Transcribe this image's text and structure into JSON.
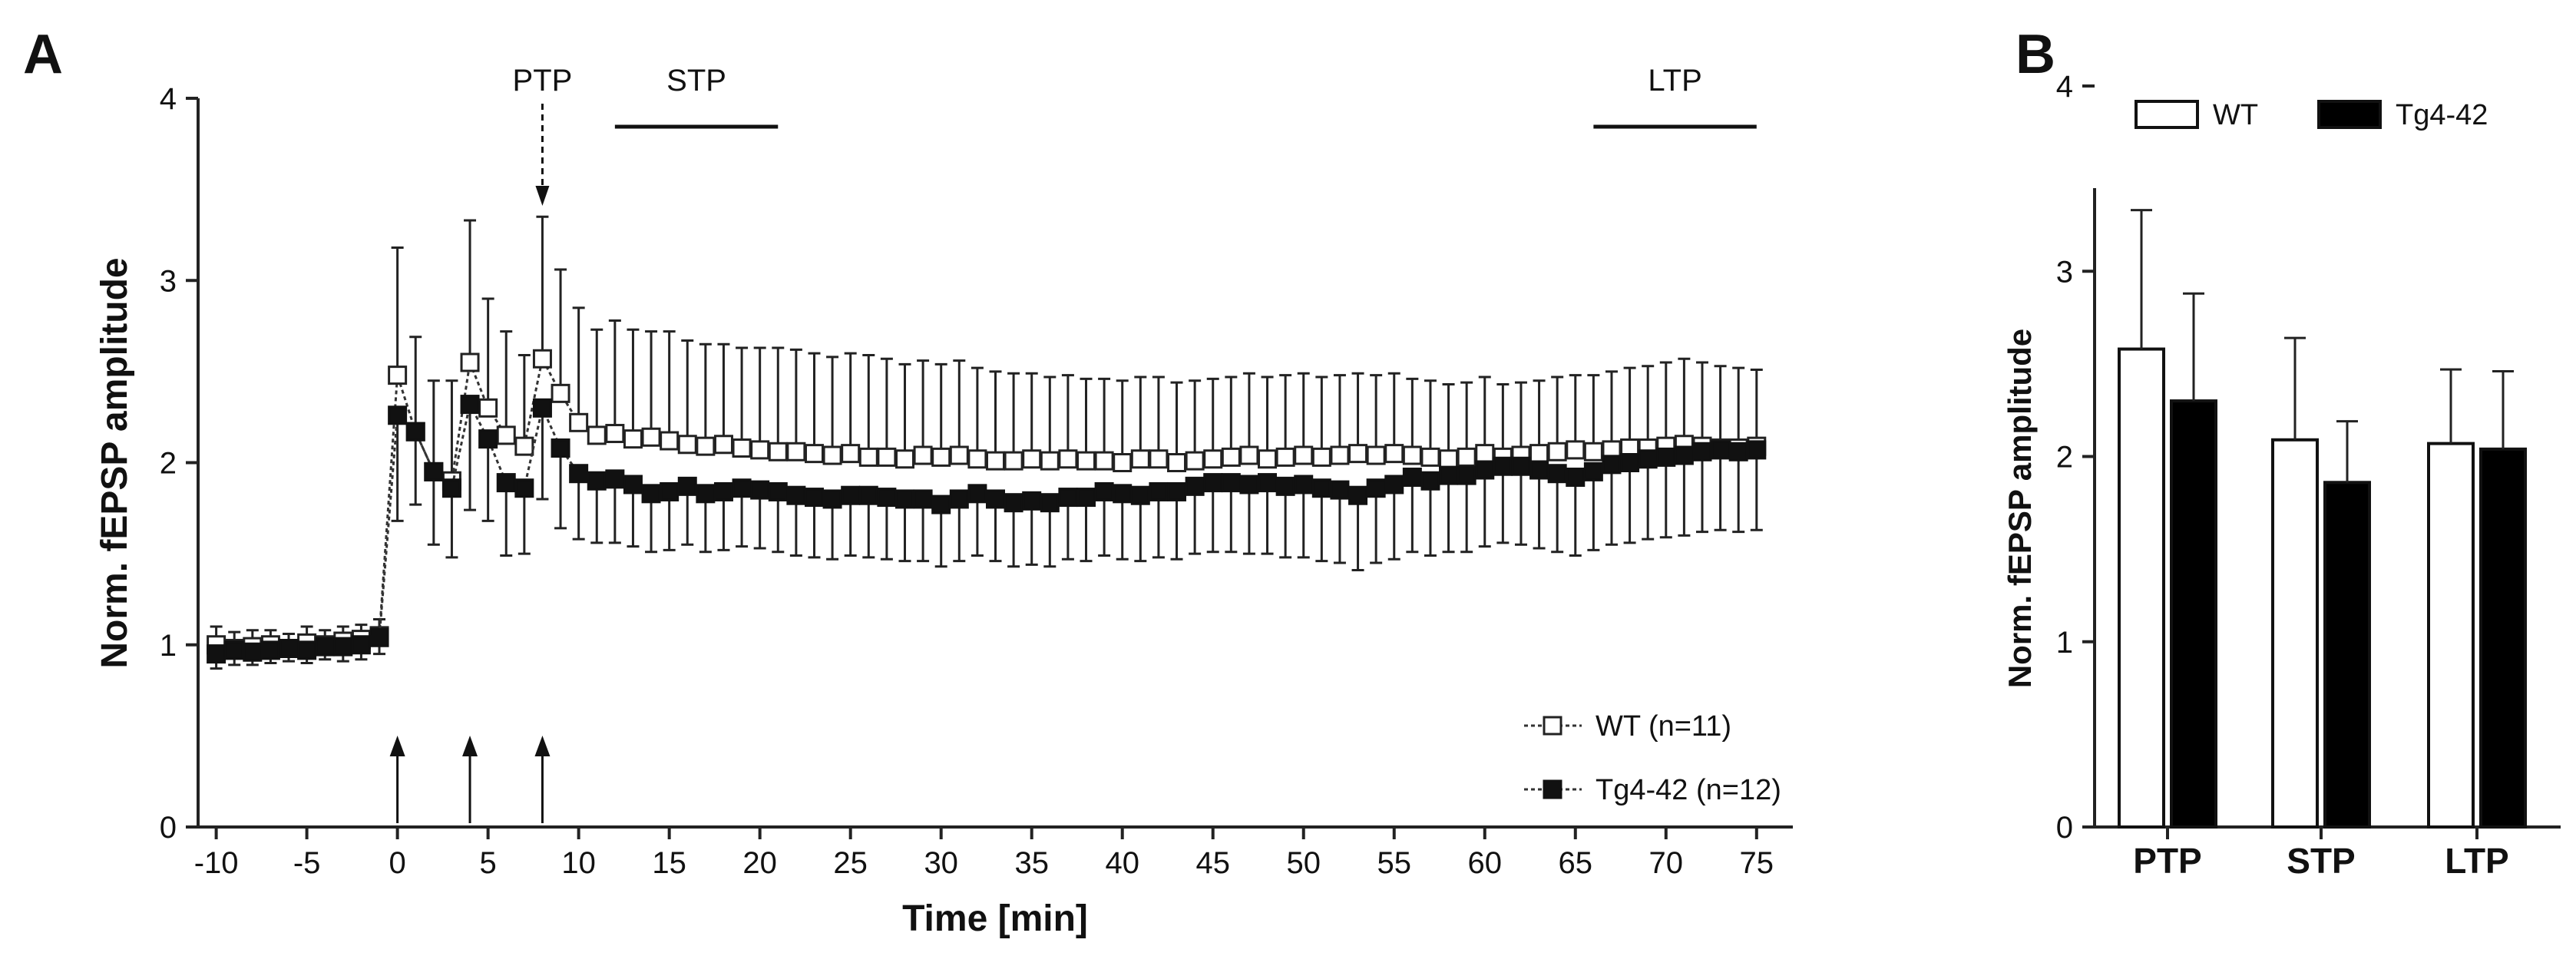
{
  "panel_a": {
    "label": "A",
    "annotations": {
      "ptp": "PTP",
      "stp": "STP",
      "ltp": "LTP"
    },
    "chart_data": {
      "type": "line",
      "xlabel": "Time [min]",
      "ylabel": "Norm. fEPSP amplitude",
      "xlim": [
        -11,
        77
      ],
      "ylim": [
        0,
        4
      ],
      "xticks": [
        "-10",
        "-5",
        "0",
        "5",
        "10",
        "15",
        "20",
        "25",
        "30",
        "35",
        "40",
        "45",
        "50",
        "55",
        "60",
        "65",
        "70",
        "75"
      ],
      "yticks": [
        "0",
        "1",
        "2",
        "3",
        "4"
      ],
      "stimulus_arrows_at": [
        0,
        4,
        8
      ],
      "ptp_arrow_at": 8,
      "stp_bar_range": [
        12,
        21
      ],
      "ltp_bar_range": [
        66,
        75
      ],
      "series": [
        {
          "name": "WT (n=11)",
          "marker": "open-square",
          "x": [
            -10,
            -9,
            -8,
            -7,
            -6,
            -5,
            -4,
            -3,
            -2,
            -1,
            0,
            1,
            2,
            3,
            4,
            5,
            6,
            7,
            8,
            9,
            10,
            11,
            12,
            13,
            14,
            15,
            16,
            17,
            18,
            19,
            20,
            21,
            22,
            23,
            24,
            25,
            26,
            27,
            28,
            29,
            30,
            31,
            32,
            33,
            34,
            35,
            36,
            37,
            38,
            39,
            40,
            41,
            42,
            43,
            44,
            45,
            46,
            47,
            48,
            49,
            50,
            51,
            52,
            53,
            54,
            55,
            56,
            57,
            58,
            59,
            60,
            61,
            62,
            63,
            64,
            65,
            66,
            67,
            68,
            69,
            70,
            71,
            72,
            73,
            74,
            75
          ],
          "y": [
            1.0,
            0.98,
            0.99,
            1.0,
            0.98,
            1.01,
            1.0,
            1.02,
            1.03,
            1.05,
            2.48,
            2.17,
            1.95,
            1.9,
            2.55,
            2.3,
            2.15,
            2.09,
            2.57,
            2.38,
            2.22,
            2.15,
            2.16,
            2.13,
            2.14,
            2.12,
            2.1,
            2.09,
            2.1,
            2.08,
            2.07,
            2.06,
            2.06,
            2.05,
            2.04,
            2.05,
            2.03,
            2.03,
            2.02,
            2.04,
            2.03,
            2.04,
            2.02,
            2.01,
            2.01,
            2.02,
            2.01,
            2.02,
            2.01,
            2.01,
            2.0,
            2.02,
            2.02,
            2.0,
            2.01,
            2.02,
            2.03,
            2.04,
            2.02,
            2.03,
            2.04,
            2.03,
            2.04,
            2.05,
            2.04,
            2.05,
            2.04,
            2.03,
            2.02,
            2.03,
            2.05,
            2.03,
            2.04,
            2.05,
            2.06,
            2.07,
            2.06,
            2.07,
            2.08,
            2.08,
            2.09,
            2.1,
            2.09,
            2.08,
            2.08,
            2.09
          ],
          "err": [
            0.1,
            0.09,
            0.09,
            0.08,
            0.08,
            0.09,
            0.08,
            0.08,
            0.08,
            0.09,
            0.7,
            0.52,
            0.5,
            0.55,
            0.78,
            0.6,
            0.57,
            0.5,
            0.78,
            0.68,
            0.63,
            0.58,
            0.62,
            0.6,
            0.58,
            0.6,
            0.57,
            0.56,
            0.55,
            0.55,
            0.56,
            0.57,
            0.56,
            0.55,
            0.54,
            0.55,
            0.56,
            0.54,
            0.52,
            0.52,
            0.51,
            0.52,
            0.5,
            0.49,
            0.48,
            0.47,
            0.46,
            0.46,
            0.45,
            0.45,
            0.45,
            0.45,
            0.45,
            0.44,
            0.44,
            0.44,
            0.44,
            0.45,
            0.45,
            0.45,
            0.45,
            0.44,
            0.44,
            0.44,
            0.44,
            0.44,
            0.42,
            0.42,
            0.41,
            0.41,
            0.42,
            0.4,
            0.4,
            0.4,
            0.41,
            0.41,
            0.42,
            0.43,
            0.44,
            0.45,
            0.46,
            0.47,
            0.46,
            0.45,
            0.44,
            0.42
          ]
        },
        {
          "name": "Tg4-42 (n=12)",
          "marker": "filled-square",
          "x": [
            -10,
            -9,
            -8,
            -7,
            -6,
            -5,
            -4,
            -3,
            -2,
            -1,
            0,
            1,
            2,
            3,
            4,
            5,
            6,
            7,
            8,
            9,
            10,
            11,
            12,
            13,
            14,
            15,
            16,
            17,
            18,
            19,
            20,
            21,
            22,
            23,
            24,
            25,
            26,
            27,
            28,
            29,
            30,
            31,
            32,
            33,
            34,
            35,
            36,
            37,
            38,
            39,
            40,
            41,
            42,
            43,
            44,
            45,
            46,
            47,
            48,
            49,
            50,
            51,
            52,
            53,
            54,
            55,
            56,
            57,
            58,
            59,
            60,
            61,
            62,
            63,
            64,
            65,
            66,
            67,
            68,
            69,
            70,
            71,
            72,
            73,
            74,
            75
          ],
          "y": [
            0.95,
            0.97,
            0.96,
            0.97,
            0.98,
            0.97,
            0.99,
            0.99,
            1.0,
            1.04,
            2.26,
            2.17,
            1.95,
            1.86,
            2.32,
            2.13,
            1.89,
            1.86,
            2.3,
            2.08,
            1.94,
            1.9,
            1.91,
            1.88,
            1.83,
            1.84,
            1.87,
            1.83,
            1.84,
            1.86,
            1.85,
            1.84,
            1.82,
            1.81,
            1.8,
            1.82,
            1.82,
            1.81,
            1.8,
            1.8,
            1.77,
            1.8,
            1.83,
            1.8,
            1.78,
            1.79,
            1.78,
            1.81,
            1.81,
            1.84,
            1.83,
            1.82,
            1.84,
            1.84,
            1.87,
            1.89,
            1.89,
            1.88,
            1.89,
            1.87,
            1.88,
            1.86,
            1.85,
            1.82,
            1.86,
            1.88,
            1.92,
            1.9,
            1.93,
            1.93,
            1.96,
            1.98,
            1.98,
            1.96,
            1.94,
            1.92,
            1.95,
            1.99,
            2.0,
            2.02,
            2.03,
            2.04,
            2.06,
            2.07,
            2.06,
            2.07
          ],
          "err": [
            0.08,
            0.08,
            0.07,
            0.07,
            0.07,
            0.07,
            0.07,
            0.08,
            0.08,
            0.09,
            0.58,
            0.4,
            0.4,
            0.38,
            0.58,
            0.45,
            0.4,
            0.36,
            0.5,
            0.44,
            0.36,
            0.34,
            0.35,
            0.34,
            0.32,
            0.32,
            0.32,
            0.32,
            0.32,
            0.32,
            0.32,
            0.33,
            0.33,
            0.33,
            0.33,
            0.33,
            0.34,
            0.34,
            0.34,
            0.34,
            0.34,
            0.34,
            0.34,
            0.34,
            0.35,
            0.35,
            0.35,
            0.34,
            0.35,
            0.35,
            0.36,
            0.36,
            0.36,
            0.37,
            0.37,
            0.38,
            0.38,
            0.38,
            0.39,
            0.39,
            0.4,
            0.4,
            0.4,
            0.41,
            0.41,
            0.41,
            0.41,
            0.41,
            0.42,
            0.42,
            0.42,
            0.42,
            0.43,
            0.43,
            0.43,
            0.43,
            0.43,
            0.44,
            0.44,
            0.44,
            0.44,
            0.44,
            0.44,
            0.44,
            0.44,
            0.44
          ]
        }
      ],
      "legend": {
        "position": "bottom-right",
        "entries": [
          "WT (n=11)",
          "Tg4-42 (n=12)"
        ]
      }
    }
  },
  "panel_b": {
    "label": "B",
    "chart_data": {
      "type": "bar",
      "ylabel": "Norm. fEPSP amplitude",
      "ylim": [
        0,
        4
      ],
      "yticks": [
        "0",
        "1",
        "2",
        "3",
        "4"
      ],
      "categories": [
        "PTP",
        "STP",
        "LTP"
      ],
      "series": [
        {
          "name": "WT",
          "fill": "#ffffff",
          "values": [
            2.58,
            2.09,
            2.07
          ],
          "err": [
            0.75,
            0.55,
            0.4
          ]
        },
        {
          "name": "Tg4-42",
          "fill": "#000000",
          "values": [
            2.3,
            1.86,
            2.04
          ],
          "err": [
            0.58,
            0.33,
            0.42
          ]
        }
      ],
      "legend": {
        "position": "top",
        "entries": [
          "WT",
          "Tg4-42"
        ]
      }
    }
  }
}
